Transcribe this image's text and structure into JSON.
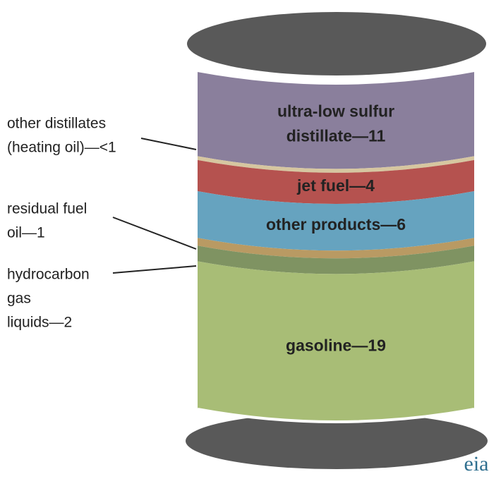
{
  "chart_data": {
    "type": "barrel",
    "segments": [
      {
        "label": [
          "ultra-low sulfur",
          "distillate—11"
        ],
        "value": 11,
        "color": "#8a7f9c",
        "inside": true
      },
      {
        "label": [
          "other distillates",
          "(heating oil)—<1"
        ],
        "value": 0.5,
        "color": "#d6c6a0",
        "inside": false
      },
      {
        "label": [
          "jet fuel—4"
        ],
        "value": 4,
        "color": "#b5524f",
        "inside": true
      },
      {
        "label": [
          "other products—6"
        ],
        "value": 6,
        "color": "#66a3bf",
        "inside": true
      },
      {
        "label": [
          "residual fuel",
          "oil—1"
        ],
        "value": 1,
        "color": "#b99a63",
        "inside": false
      },
      {
        "label": [
          "hydrocarbon",
          "gas",
          "liquids—2"
        ],
        "value": 2,
        "color": "#7f9362",
        "inside": false
      },
      {
        "label": [
          "gasoline—19"
        ],
        "value": 19,
        "color": "#a8bd76",
        "inside": true
      }
    ],
    "logo": "eia"
  }
}
